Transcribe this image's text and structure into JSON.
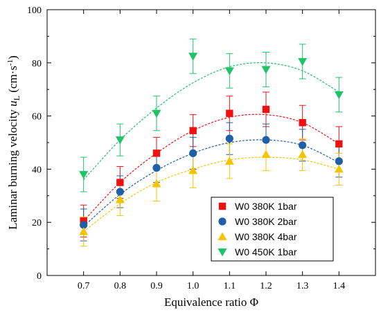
{
  "chart_data": {
    "type": "scatter",
    "title": "",
    "xlabel": "Equivalence ratio Φ",
    "ylabel_main": "Laminar burning velocity ",
    "ylabel_symbol": "u",
    "ylabel_sub": "L",
    "ylabel_unit": " (cm·s",
    "ylabel_exp": "-1",
    "ylabel_close": ")",
    "xlim": [
      0.6,
      1.5
    ],
    "ylim": [
      0,
      100
    ],
    "xticks": [
      0.7,
      0.8,
      0.9,
      1.0,
      1.1,
      1.2,
      1.3,
      1.4
    ],
    "xtick_labels": [
      "0.7",
      "0.8",
      "0.9",
      "1.0",
      "1.1",
      "1.2",
      "1.3",
      "1.4"
    ],
    "yticks": [
      0,
      20,
      40,
      60,
      80,
      100
    ],
    "ytick_labels": [
      "0",
      "20",
      "40",
      "60",
      "80",
      "100"
    ],
    "grid": false,
    "legend_position": "bottom-right",
    "x": [
      0.7,
      0.8,
      0.9,
      1.0,
      1.1,
      1.2,
      1.3,
      1.4
    ],
    "series": [
      {
        "name": "W0 380K 1bar",
        "marker": "square",
        "color": "#ee1111",
        "values": [
          20.5,
          35,
          46,
          54.5,
          61,
          62.5,
          57.5,
          49.5
        ],
        "errors": [
          6,
          6,
          6,
          6,
          6.5,
          6.5,
          6.5,
          6.5
        ],
        "fit": [
          [
            0.7,
            20.5
          ],
          [
            0.8,
            35
          ],
          [
            0.9,
            46
          ],
          [
            1.0,
            54.5
          ],
          [
            1.1,
            59.5
          ],
          [
            1.2,
            60.5
          ],
          [
            1.3,
            57.5
          ],
          [
            1.4,
            49.5
          ]
        ]
      },
      {
        "name": "W0 380K 2bar",
        "marker": "circle",
        "color": "#1f5fa8",
        "values": [
          19,
          31.5,
          40.5,
          46,
          51.5,
          51,
          49,
          43
        ],
        "errors": [
          6,
          6,
          5.5,
          6,
          6,
          6,
          6,
          6
        ],
        "fit": [
          [
            0.7,
            18.5
          ],
          [
            0.8,
            30.5
          ],
          [
            0.9,
            39.5
          ],
          [
            1.0,
            46
          ],
          [
            1.1,
            50
          ],
          [
            1.2,
            51
          ],
          [
            1.3,
            49
          ],
          [
            1.4,
            42.5
          ]
        ]
      },
      {
        "name": "W0 380K 4bar",
        "marker": "triangle-up",
        "color": "#f5c400",
        "values": [
          16.5,
          28.5,
          34.5,
          39.5,
          43,
          45.5,
          45.5,
          40
        ],
        "errors": [
          5.5,
          6,
          6.5,
          6.5,
          6.5,
          6,
          6,
          6
        ],
        "fit": [
          [
            0.7,
            16.5
          ],
          [
            0.8,
            27
          ],
          [
            0.9,
            35
          ],
          [
            1.0,
            40
          ],
          [
            1.1,
            43.5
          ],
          [
            1.2,
            44.5
          ],
          [
            1.3,
            43.5
          ],
          [
            1.4,
            40
          ]
        ]
      },
      {
        "name": "W0 450K 1bar",
        "marker": "triangle-down",
        "color": "#1ec36a",
        "values": [
          38,
          51,
          61,
          82.5,
          77,
          77.5,
          80.5,
          68
        ],
        "errors": [
          6.5,
          6,
          6.5,
          6.5,
          6.5,
          6.5,
          6.5,
          6.5
        ],
        "fit": [
          [
            0.7,
            36
          ],
          [
            0.8,
            51
          ],
          [
            0.9,
            63
          ],
          [
            1.0,
            72.5
          ],
          [
            1.1,
            78.5
          ],
          [
            1.2,
            80
          ],
          [
            1.3,
            77
          ],
          [
            1.4,
            69
          ]
        ]
      }
    ]
  }
}
